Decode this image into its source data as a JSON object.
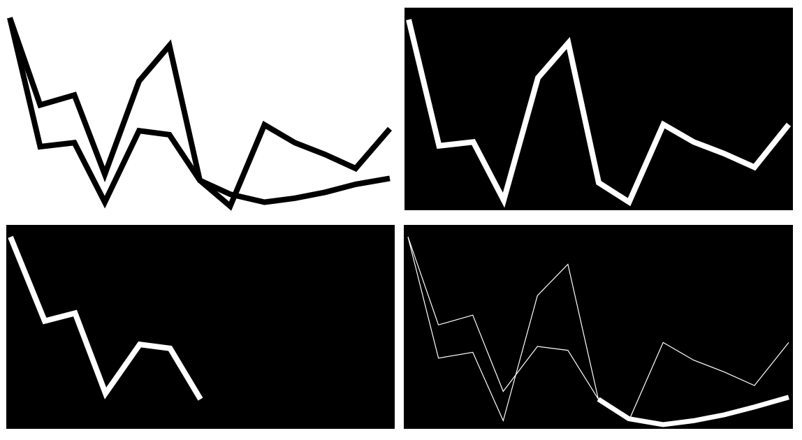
{
  "panels": [
    {
      "name": "panel-top-left",
      "background": "#ffffff",
      "lines": [
        {
          "name": "series-a",
          "color": "#000000",
          "points": [
            [
              0,
              0.04
            ],
            [
              0.08,
              0.48
            ],
            [
              0.17,
              0.43
            ],
            [
              0.25,
              0.83
            ],
            [
              0.34,
              0.36
            ],
            [
              0.42,
              0.18
            ],
            [
              0.5,
              0.86
            ],
            [
              0.58,
              0.99
            ],
            [
              0.67,
              0.58
            ],
            [
              0.75,
              0.67
            ],
            [
              0.83,
              0.73
            ],
            [
              0.91,
              0.8
            ],
            [
              1.0,
              0.6
            ]
          ]
        },
        {
          "name": "series-b",
          "color": "#000000",
          "points": [
            [
              0,
              0.04
            ],
            [
              0.08,
              0.69
            ],
            [
              0.17,
              0.67
            ],
            [
              0.25,
              0.97
            ],
            [
              0.34,
              0.61
            ],
            [
              0.42,
              0.63
            ],
            [
              0.5,
              0.86
            ],
            [
              0.58,
              0.93
            ],
            [
              0.67,
              0.97
            ],
            [
              0.75,
              0.95
            ],
            [
              0.83,
              0.92
            ],
            [
              0.91,
              0.88
            ],
            [
              1.0,
              0.85
            ]
          ]
        }
      ]
    },
    {
      "name": "panel-top-right",
      "background": "#000000",
      "lines": [
        {
          "name": "series-a",
          "color": "#ffffff",
          "points": [
            [
              0,
              0.04
            ],
            [
              0.08,
              0.69
            ],
            [
              0.17,
              0.67
            ],
            [
              0.25,
              0.97
            ],
            [
              0.34,
              0.34
            ],
            [
              0.42,
              0.16
            ],
            [
              0.5,
              0.88
            ],
            [
              0.58,
              0.98
            ],
            [
              0.67,
              0.58
            ],
            [
              0.75,
              0.67
            ],
            [
              0.83,
              0.73
            ],
            [
              0.91,
              0.8
            ],
            [
              1.0,
              0.58
            ]
          ]
        }
      ]
    },
    {
      "name": "panel-bottom-left",
      "background": "#000000",
      "lines": [
        {
          "name": "series-b",
          "color": "#ffffff",
          "points": [
            [
              0,
              0.04
            ],
            [
              0.09,
              0.47
            ],
            [
              0.17,
              0.43
            ],
            [
              0.25,
              0.84
            ],
            [
              0.34,
              0.59
            ],
            [
              0.42,
              0.61
            ],
            [
              0.5,
              0.87
            ]
          ]
        }
      ]
    },
    {
      "name": "panel-bottom-right",
      "background": "#000000",
      "lines": [
        {
          "name": "series-a-outline",
          "color": "#ffffff",
          "width": 1.2,
          "points": [
            [
              0,
              0.04
            ],
            [
              0.08,
              0.66
            ],
            [
              0.17,
              0.63
            ],
            [
              0.25,
              0.98
            ],
            [
              0.34,
              0.34
            ],
            [
              0.42,
              0.18
            ],
            [
              0.5,
              0.87
            ],
            [
              0.58,
              0.98
            ],
            [
              0.67,
              0.58
            ],
            [
              0.75,
              0.67
            ],
            [
              0.83,
              0.73
            ],
            [
              0.91,
              0.8
            ],
            [
              1.0,
              0.58
            ]
          ]
        },
        {
          "name": "series-b-outline",
          "color": "#ffffff",
          "width": 1.2,
          "points": [
            [
              0,
              0.04
            ],
            [
              0.08,
              0.49
            ],
            [
              0.17,
              0.44
            ],
            [
              0.25,
              0.83
            ],
            [
              0.34,
              0.6
            ],
            [
              0.42,
              0.62
            ],
            [
              0.5,
              0.87
            ]
          ]
        },
        {
          "name": "series-b-tail",
          "color": "#ffffff",
          "width": 7,
          "points": [
            [
              0.5,
              0.87
            ],
            [
              0.58,
              0.97
            ],
            [
              0.67,
              1.0
            ],
            [
              0.75,
              0.98
            ],
            [
              0.83,
              0.95
            ],
            [
              0.91,
              0.91
            ],
            [
              1.0,
              0.86
            ]
          ]
        }
      ]
    }
  ]
}
